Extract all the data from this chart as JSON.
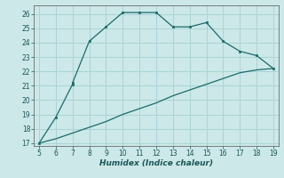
{
  "xlabel": "Humidex (Indice chaleur)",
  "background_color": "#cce8e8",
  "grid_color": "#aad4d4",
  "line_color": "#1a6b6b",
  "marker_color": "#1a6b6b",
  "curve1_x": [
    5,
    6,
    7,
    7,
    8,
    9,
    10,
    11,
    12,
    13,
    14,
    15,
    16,
    17,
    18,
    19
  ],
  "curve1_y": [
    17.0,
    18.8,
    21.1,
    21.2,
    24.1,
    25.1,
    26.1,
    26.1,
    26.1,
    25.1,
    25.1,
    25.4,
    24.1,
    23.4,
    23.1,
    22.2
  ],
  "curve2_x": [
    5,
    6,
    7,
    8,
    9,
    10,
    11,
    12,
    13,
    14,
    15,
    16,
    17,
    18,
    19
  ],
  "curve2_y": [
    17.0,
    17.3,
    17.7,
    18.1,
    18.5,
    19.0,
    19.4,
    19.8,
    20.3,
    20.7,
    21.1,
    21.5,
    21.9,
    22.1,
    22.2
  ],
  "xlim": [
    4.7,
    19.3
  ],
  "ylim": [
    16.8,
    26.6
  ],
  "xticks": [
    5,
    6,
    7,
    8,
    9,
    10,
    11,
    12,
    13,
    14,
    15,
    16,
    17,
    18,
    19
  ],
  "yticks": [
    17,
    18,
    19,
    20,
    21,
    22,
    23,
    24,
    25,
    26
  ]
}
